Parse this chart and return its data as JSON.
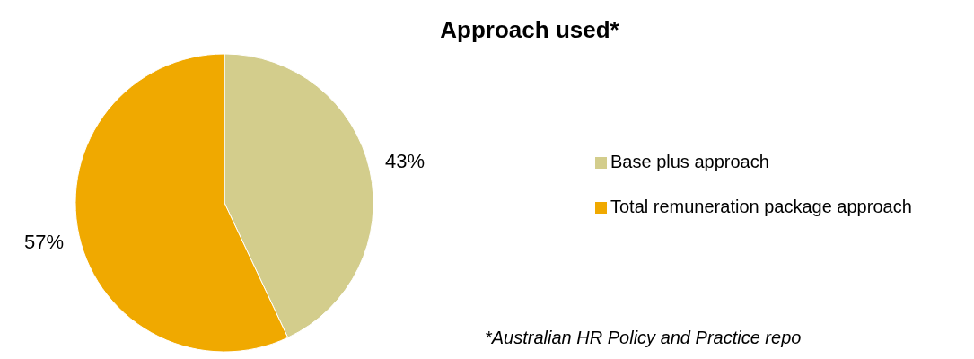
{
  "chart_data": {
    "type": "pie",
    "title": "Approach used*",
    "categories": [
      "Base plus approach",
      "Total remuneration package approach"
    ],
    "values": [
      43,
      57
    ],
    "colors": [
      "#d3cd8c",
      "#f0a900"
    ],
    "value_labels": [
      "43%",
      "57%"
    ],
    "legend": "right",
    "annotations": [
      "*Australian HR Policy and Practice repo"
    ]
  }
}
